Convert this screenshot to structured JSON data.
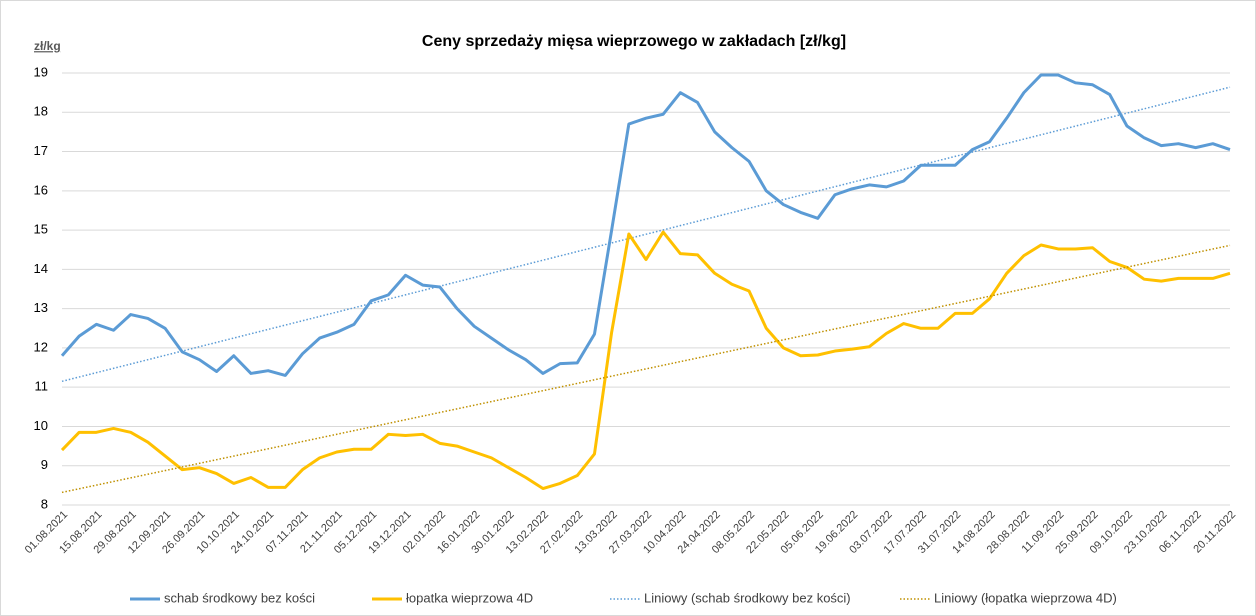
{
  "chart_data": {
    "type": "line",
    "title": "Ceny sprzedaży mięsa wieprzowego w zakładach [zł/kg]",
    "y_label": "zł/kg",
    "categories": [
      "01.08.2021",
      null,
      "15.08.2021",
      null,
      "29.08.2021",
      null,
      "12.09.2021",
      null,
      "26.09.2021",
      null,
      "10.10.2021",
      null,
      "24.10.2021",
      null,
      "07.11.2021",
      null,
      "21.11.2021",
      null,
      "05.12.2021",
      null,
      "19.12.2021",
      null,
      "02.01.2022",
      null,
      "16.01.2022",
      null,
      "30.01.2022",
      null,
      "13.02.2022",
      null,
      "27.02.2022",
      null,
      "13.03.2022",
      null,
      "27.03.2022",
      null,
      "10.04.2022",
      null,
      "24.04.2022",
      null,
      "08.05.2022",
      null,
      "22.05.2022",
      null,
      "05.06.2022",
      null,
      "19.06.2022",
      null,
      "03.07.2022",
      null,
      "17.07.2022",
      null,
      "31.07.2022",
      null,
      "14.08.2022",
      null,
      "28.08.2022",
      null,
      "11.09.2022",
      null,
      "25.09.2022",
      null,
      "09.10.2022",
      null,
      "23.10.2022",
      null,
      "06.11.2022",
      null,
      "20.11.2022"
    ],
    "series": [
      {
        "name": "schab środkowy bez kości",
        "color": "#5b9bd5",
        "values": [
          11.8,
          12.3,
          12.6,
          12.45,
          12.85,
          12.75,
          12.5,
          11.9,
          11.7,
          11.4,
          11.8,
          11.35,
          11.42,
          11.3,
          11.85,
          12.25,
          12.4,
          12.6,
          13.2,
          13.35,
          13.85,
          13.6,
          13.55,
          13.0,
          12.55,
          12.25,
          11.95,
          11.7,
          11.35,
          11.6,
          11.62,
          12.35,
          15.0,
          17.7,
          17.85,
          17.95,
          18.5,
          18.25,
          17.5,
          17.1,
          16.75,
          16.0,
          15.65,
          15.45,
          15.3,
          15.9,
          16.05,
          16.15,
          16.1,
          16.25,
          16.65,
          16.65,
          16.65,
          17.05,
          17.25,
          17.85,
          18.5,
          18.95,
          18.95,
          18.75,
          18.7,
          18.45,
          17.65,
          17.35,
          17.15,
          17.2,
          17.1,
          17.2,
          17.05
        ],
        "trendline": {
          "name": "Liniowy (schab środkowy bez kości)",
          "color": "#5b9bd5"
        }
      },
      {
        "name": "łopatka wieprzowa 4D",
        "color": "#ffc000",
        "values": [
          9.4,
          9.85,
          9.85,
          9.95,
          9.85,
          9.6,
          9.25,
          8.9,
          8.95,
          8.8,
          8.55,
          8.7,
          8.45,
          8.45,
          8.9,
          9.2,
          9.35,
          9.42,
          9.42,
          9.8,
          9.77,
          9.8,
          9.57,
          9.5,
          9.35,
          9.2,
          8.95,
          8.7,
          8.42,
          8.55,
          8.75,
          9.3,
          12.4,
          14.9,
          14.25,
          14.95,
          14.4,
          14.37,
          13.9,
          13.62,
          13.45,
          12.5,
          12.0,
          11.8,
          11.82,
          11.92,
          11.97,
          12.03,
          12.37,
          12.62,
          12.5,
          12.5,
          12.88,
          12.88,
          13.25,
          13.9,
          14.35,
          14.62,
          14.52,
          14.52,
          14.55,
          14.2,
          14.05,
          13.75,
          13.7,
          13.77,
          13.77,
          13.77,
          13.9
        ],
        "trendline": {
          "name": "Liniowy (łopatka wieprzowa 4D)",
          "color": "#bf9000"
        }
      }
    ],
    "ylim": [
      8,
      19
    ],
    "yticks": [
      8,
      9,
      10,
      11,
      12,
      13,
      14,
      15,
      16,
      17,
      18,
      19
    ],
    "grid": true,
    "legend": "bottom"
  }
}
